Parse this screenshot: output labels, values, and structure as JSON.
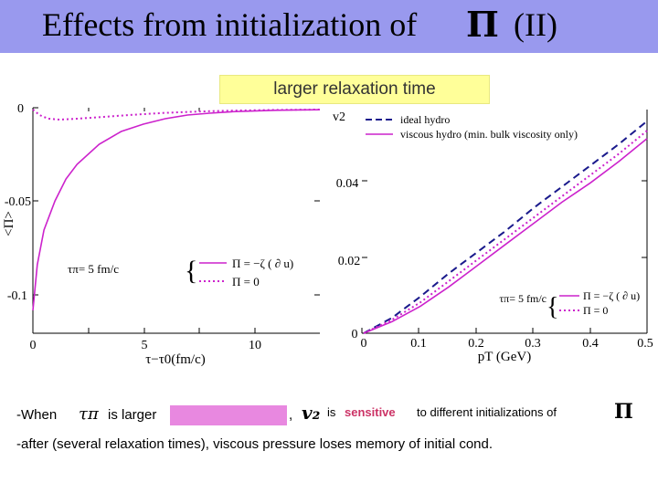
{
  "title": {
    "text": "Effects from initialization of",
    "symbol": "Π",
    "suffix": "(II)"
  },
  "banner": {
    "text": "larger relaxation time"
  },
  "left_plot": {
    "ylabel": "<Π>",
    "xlabel": "τ−τ0(fm/c)",
    "yticks": [
      "0",
      "-0.05",
      "-0.1"
    ],
    "xticks": [
      "0",
      "5",
      "10"
    ],
    "legend_tau": "τπ= 5 fm/c",
    "legend_entries": [
      "Π = −ζ ( ∂ u)",
      "Π = 0"
    ]
  },
  "right_plot": {
    "ylabel": "v2",
    "xlabel": "pT (GeV)",
    "yticks": [
      "0",
      "0.02",
      "0.04"
    ],
    "xticks": [
      "0",
      "0.1",
      "0.2",
      "0.3",
      "0.4",
      "0.5"
    ],
    "legend_entries": [
      "ideal hydro",
      "viscous hydro (min. bulk viscosity only)"
    ],
    "legend_tau": "τπ= 5 fm/c",
    "legend2_entries": [
      "Π = −ζ ( ∂ u)",
      "Π = 0"
    ]
  },
  "colors": {
    "title_bg": "#9999ee",
    "banner_bg": "#ffff99",
    "magenta": "#cc22cc",
    "navy": "#1a1a8c",
    "highlight": "#e888e0",
    "sensitive": "#cc3366"
  },
  "chart_data": [
    {
      "type": "line",
      "title": "",
      "xlabel": "τ−τ0(fm/c)",
      "ylabel": "<Π>",
      "xlim": [
        0,
        13
      ],
      "ylim": [
        -0.115,
        0.001
      ],
      "series": [
        {
          "name": "Π = −ζ ( ∂ u)",
          "style": "solid",
          "color": "#cc22cc",
          "x": [
            0,
            0.2,
            0.5,
            1,
            1.5,
            2,
            3,
            4,
            5,
            6,
            7,
            8,
            9,
            10,
            11,
            12,
            13
          ],
          "y": [
            -0.11,
            -0.085,
            -0.066,
            -0.05,
            -0.038,
            -0.03,
            -0.019,
            -0.012,
            -0.008,
            -0.005,
            -0.003,
            -0.002,
            -0.0012,
            -0.0008,
            -0.0004,
            -0.0002,
            -0.0001
          ]
        },
        {
          "name": "Π = 0",
          "style": "dotted",
          "color": "#cc22cc",
          "x": [
            0,
            0.3,
            0.7,
            1.2,
            2,
            3,
            4,
            5,
            6,
            7,
            8,
            9,
            10,
            11,
            12,
            13
          ],
          "y": [
            0,
            -0.003,
            -0.005,
            -0.0055,
            -0.005,
            -0.0042,
            -0.0033,
            -0.0025,
            -0.0018,
            -0.0013,
            -0.0009,
            -0.0006,
            -0.0004,
            -0.0002,
            -0.0001,
            0
          ]
        }
      ]
    },
    {
      "type": "line",
      "title": "",
      "xlabel": "pT (GeV)",
      "ylabel": "v2",
      "xlim": [
        0,
        0.5
      ],
      "ylim": [
        0,
        0.058
      ],
      "series": [
        {
          "name": "ideal hydro",
          "style": "dashed",
          "color": "#1a1a8c",
          "x": [
            0,
            0.05,
            0.1,
            0.15,
            0.2,
            0.25,
            0.3,
            0.35,
            0.4,
            0.45,
            0.5
          ],
          "y": [
            0,
            0.004,
            0.0095,
            0.0155,
            0.021,
            0.0265,
            0.0325,
            0.038,
            0.0435,
            0.049,
            0.055
          ]
        },
        {
          "name": "Π = −ζ ( ∂ u)",
          "style": "solid",
          "color": "#cc22cc",
          "x": [
            0,
            0.05,
            0.1,
            0.15,
            0.2,
            0.25,
            0.3,
            0.35,
            0.4,
            0.45,
            0.5
          ],
          "y": [
            0,
            0.003,
            0.007,
            0.012,
            0.0175,
            0.023,
            0.0285,
            0.034,
            0.039,
            0.0445,
            0.0505
          ]
        },
        {
          "name": "Π = 0",
          "style": "dotted",
          "color": "#cc22cc",
          "x": [
            0,
            0.05,
            0.1,
            0.15,
            0.2,
            0.25,
            0.3,
            0.35,
            0.4,
            0.45,
            0.5
          ],
          "y": [
            0,
            0.0035,
            0.008,
            0.0135,
            0.019,
            0.0245,
            0.03,
            0.0355,
            0.041,
            0.0465,
            0.0525
          ]
        }
      ]
    }
  ],
  "bottom": {
    "line1_prefix": "-When",
    "line1_tau": "τπ",
    "line1_mid": "is larger",
    "line1_comma": ",",
    "line1_v2": "v₂",
    "line1_is": "is",
    "line1_sensitive": "sensitive",
    "line1_rest": "to different initializations of",
    "line1_symbol": "Π",
    "line2": "-after (several relaxation times), viscous pressure loses memory of initial cond."
  }
}
